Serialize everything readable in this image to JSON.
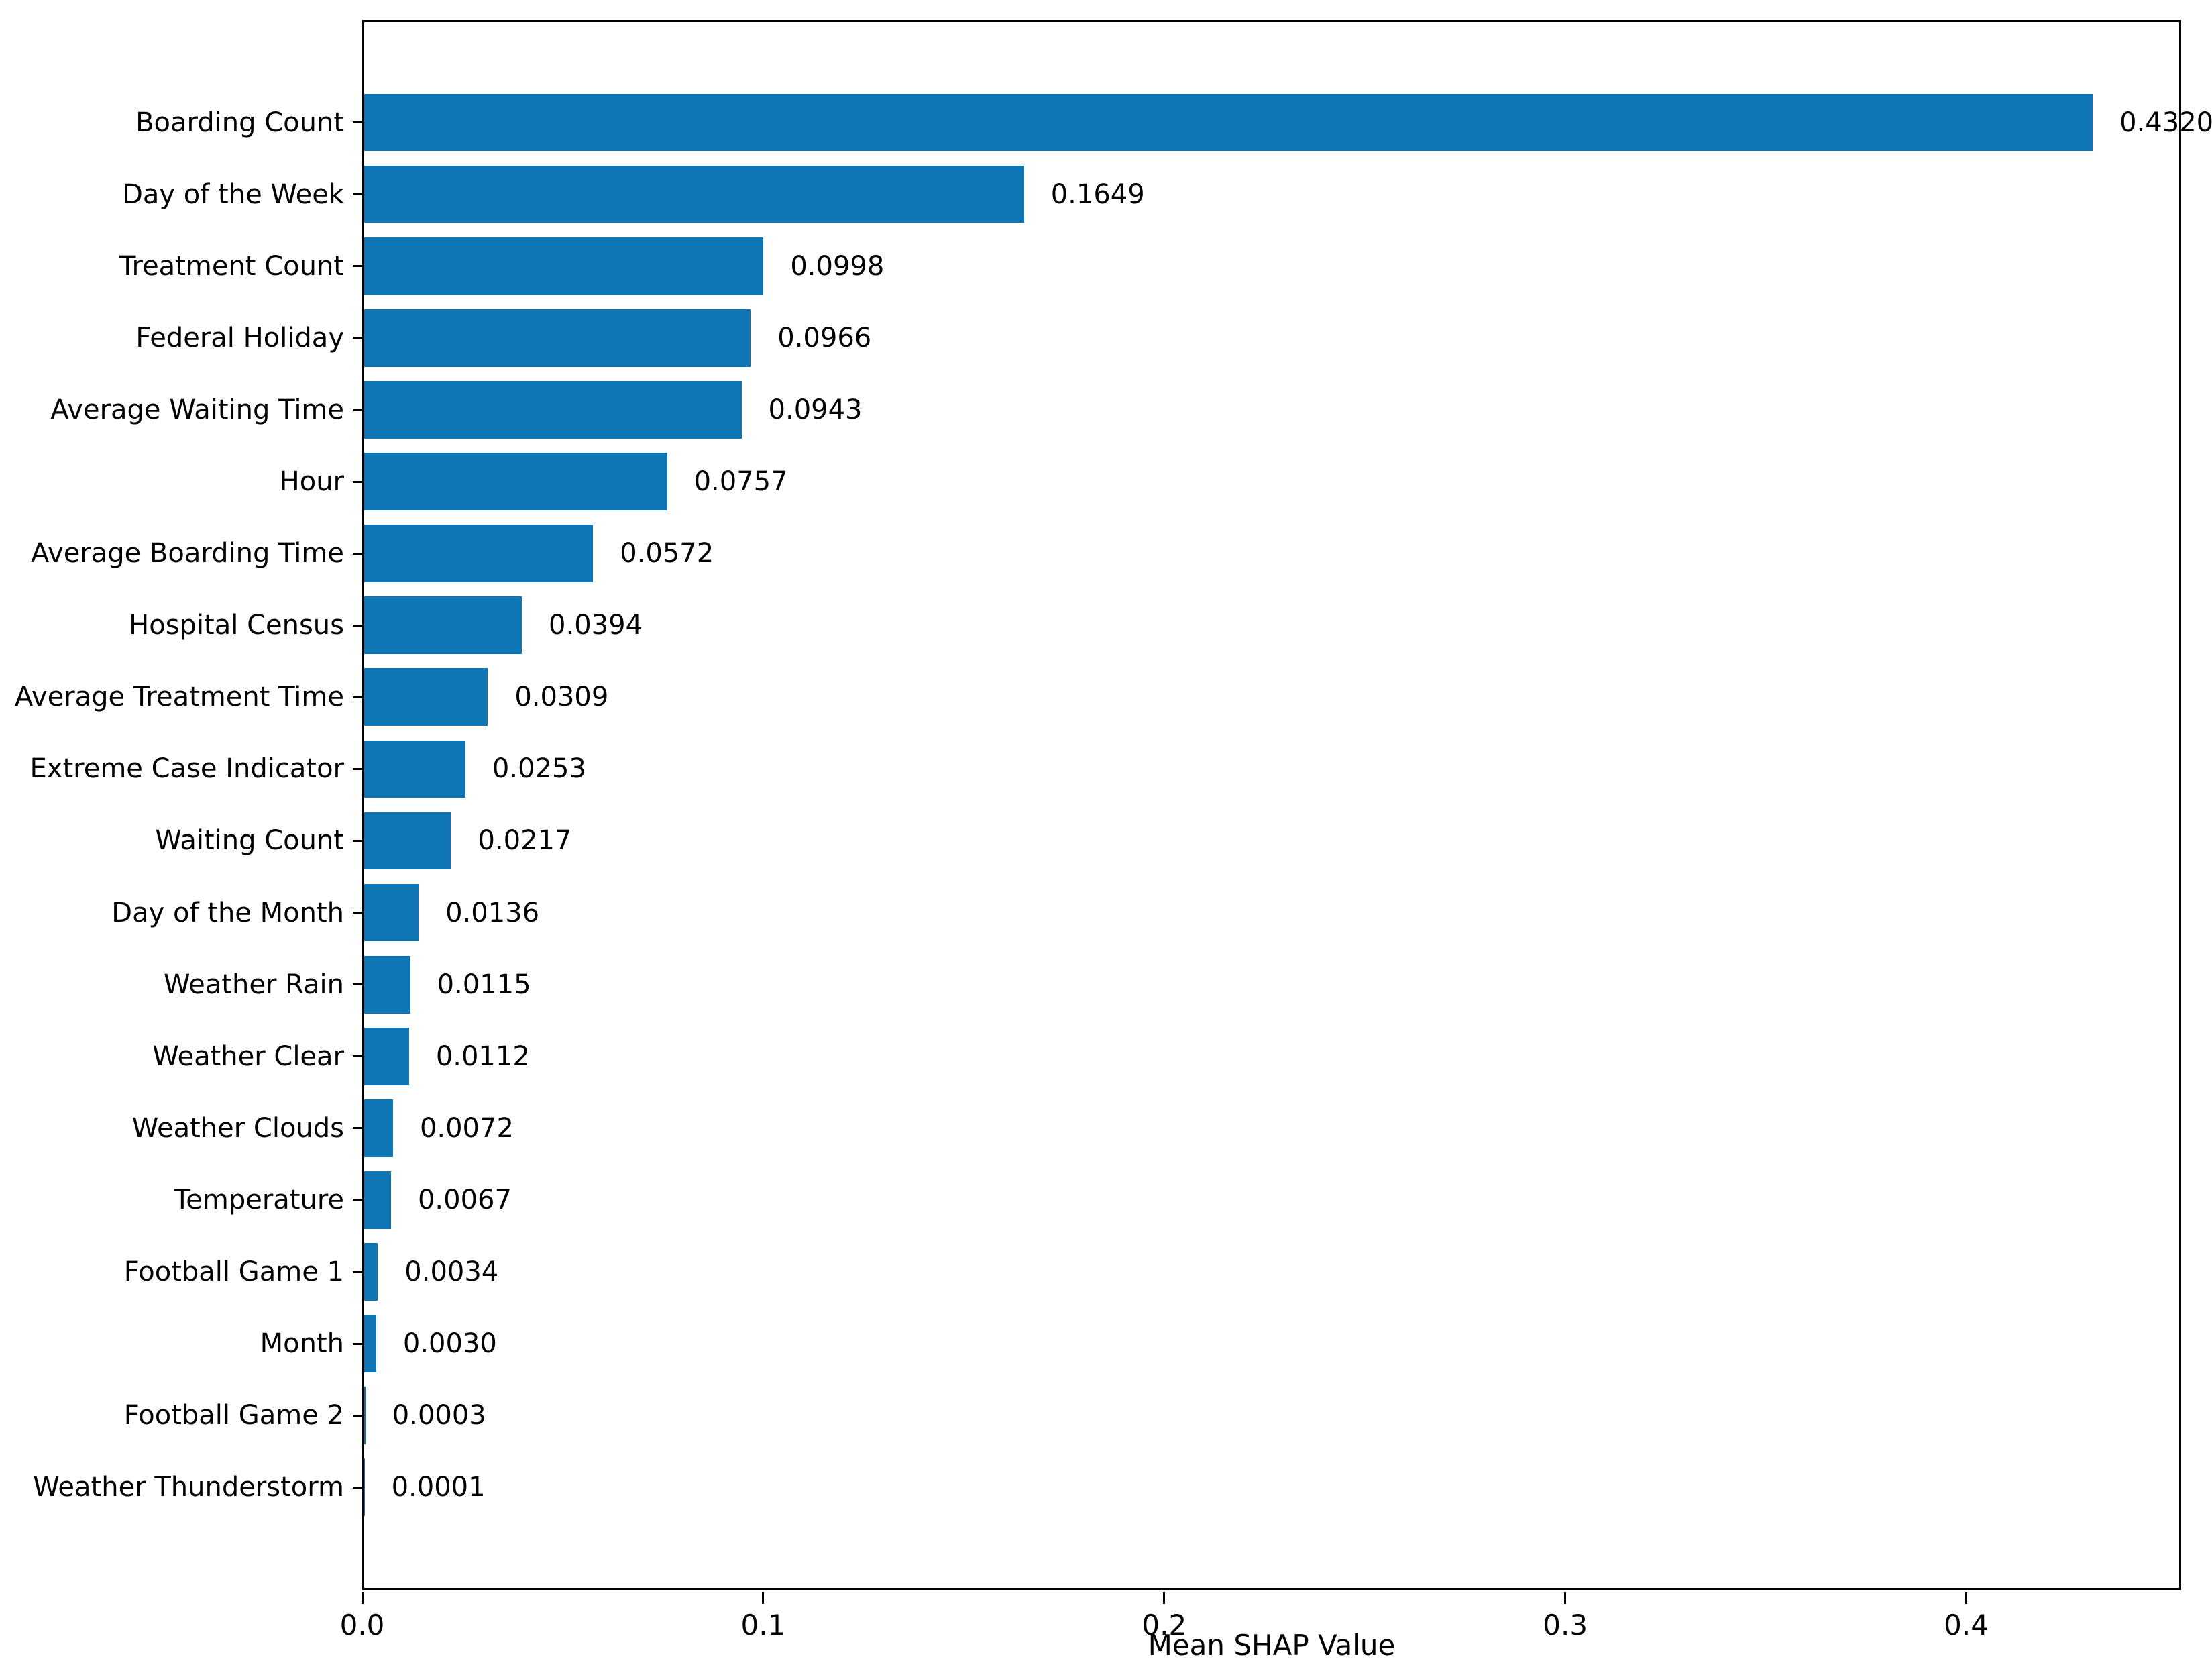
{
  "chart_data": {
    "type": "bar",
    "orientation": "horizontal",
    "xlabel": "Mean SHAP Value",
    "bar_color": "#0e76b5",
    "axis_color": "#000000",
    "grid": false,
    "xlim": [
      0,
      0.4536
    ],
    "x_ticks": [
      {
        "value": 0.0,
        "label": "0.0"
      },
      {
        "value": 0.1,
        "label": "0.1"
      },
      {
        "value": 0.2,
        "label": "0.2"
      },
      {
        "value": 0.3,
        "label": "0.3"
      },
      {
        "value": 0.4,
        "label": "0.4"
      }
    ],
    "categories": [
      "Boarding Count",
      "Day of the Week",
      "Treatment Count",
      "Federal Holiday",
      "Average Waiting Time",
      "Hour",
      "Average Boarding Time",
      "Hospital Census",
      "Average Treatment Time",
      "Extreme Case Indicator",
      "Waiting Count",
      "Day of the Month",
      "Weather Rain",
      "Weather Clear",
      "Weather Clouds",
      "Temperature",
      "Football Game 1",
      "Month",
      "Football Game 2",
      "Weather Thunderstorm"
    ],
    "values": [
      0.432,
      0.1649,
      0.0998,
      0.0966,
      0.0943,
      0.0757,
      0.0572,
      0.0394,
      0.0309,
      0.0253,
      0.0217,
      0.0136,
      0.0115,
      0.0112,
      0.0072,
      0.0067,
      0.0034,
      0.003,
      0.0003,
      0.0001
    ],
    "value_labels": [
      "0.4320",
      "0.1649",
      "0.0998",
      "0.0966",
      "0.0943",
      "0.0757",
      "0.0572",
      "0.0394",
      "0.0309",
      "0.0253",
      "0.0217",
      "0.0136",
      "0.0115",
      "0.0112",
      "0.0072",
      "0.0067",
      "0.0034",
      "0.0030",
      "0.0003",
      "0.0001"
    ]
  }
}
